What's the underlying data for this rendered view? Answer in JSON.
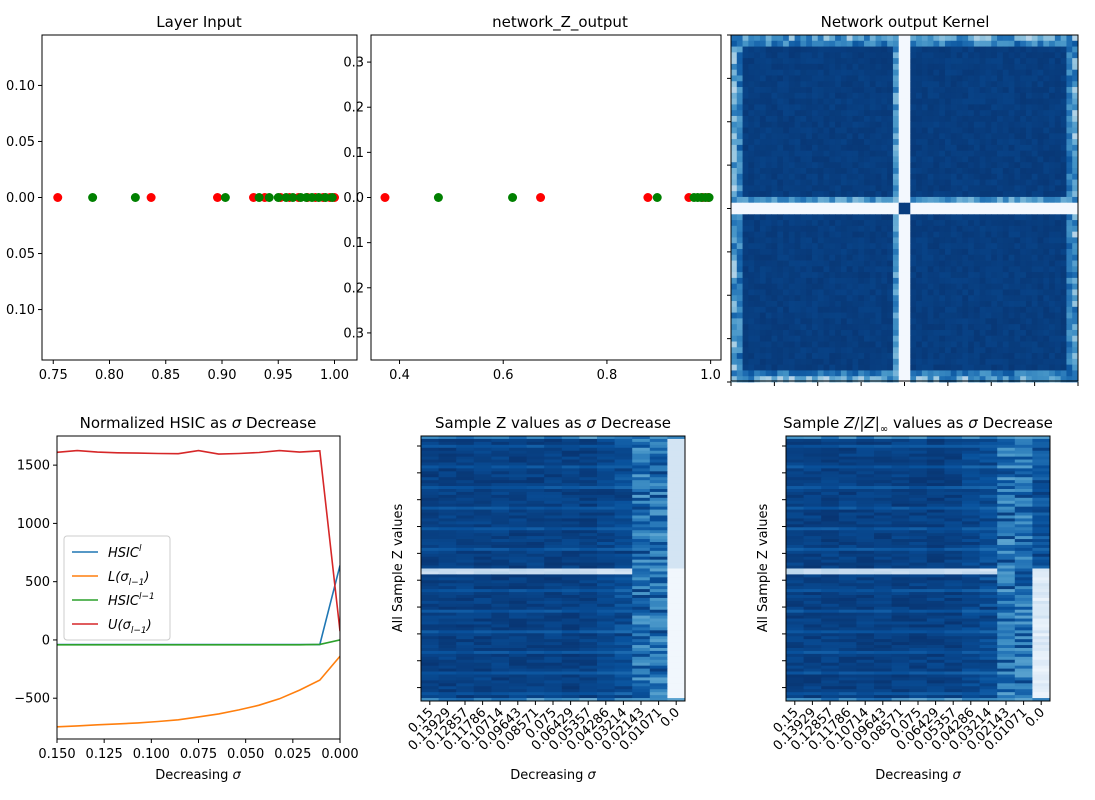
{
  "chart_data": [
    {
      "type": "scatter",
      "title": "Layer Input",
      "xlabel": "",
      "ylabel": "",
      "xlim": [
        0.74,
        1.02
      ],
      "ylim": [
        -0.145,
        0.145
      ],
      "xticks": [
        "0.75",
        "0.80",
        "0.85",
        "0.90",
        "0.95",
        "1.00"
      ],
      "xtick_values": [
        0.75,
        0.8,
        0.85,
        0.9,
        0.95,
        1.0
      ],
      "yticks": [
        "0.10",
        "0.05",
        "0.00",
        "0.05",
        "0.10"
      ],
      "ytick_values": [
        0.1,
        0.05,
        0.0,
        -0.05,
        -0.1
      ],
      "series": [
        {
          "color": "#ff0000",
          "x": [
            0.754,
            0.837,
            0.896,
            0.928,
            0.938,
            0.952,
            0.96,
            0.968,
            0.976,
            0.983,
            0.99,
            0.996,
            1.0
          ],
          "y": [
            0,
            0,
            0,
            0,
            0,
            0,
            0,
            0,
            0,
            0,
            0,
            0,
            0
          ]
        },
        {
          "color": "#008000",
          "x": [
            0.785,
            0.823,
            0.903,
            0.933,
            0.942,
            0.95,
            0.957,
            0.963,
            0.97,
            0.975,
            0.98,
            0.986,
            0.992,
            0.998
          ],
          "y": [
            0,
            0,
            0,
            0,
            0,
            0,
            0,
            0,
            0,
            0,
            0,
            0,
            0,
            0
          ]
        }
      ]
    },
    {
      "type": "scatter",
      "title": "network_Z_output",
      "xlabel": "",
      "ylabel": "",
      "xlim": [
        0.345,
        1.02
      ],
      "ylim": [
        -0.36,
        0.36
      ],
      "xticks": [
        "0.4",
        "0.6",
        "0.8",
        "1.0"
      ],
      "xtick_values": [
        0.4,
        0.6,
        0.8,
        1.0
      ],
      "yticks": [
        "0.3",
        "0.2",
        "0.1",
        "0.0",
        "0.1",
        "0.2",
        "0.3"
      ],
      "ytick_values": [
        0.3,
        0.2,
        0.1,
        0.0,
        -0.1,
        -0.2,
        -0.3
      ],
      "series": [
        {
          "color": "#ff0000",
          "x": [
            0.372,
            0.672,
            0.879,
            0.958,
            0.985,
            0.995
          ],
          "y": [
            0,
            0,
            0,
            0,
            0,
            0
          ]
        },
        {
          "color": "#008000",
          "x": [
            0.475,
            0.618,
            0.897,
            0.968,
            0.975,
            0.982,
            0.99,
            0.997
          ],
          "y": [
            0,
            0,
            0,
            0,
            0,
            0,
            0,
            0
          ]
        }
      ]
    },
    {
      "type": "heatmap",
      "title": "Network output Kernel",
      "colormap": "Blues"
    },
    {
      "type": "line",
      "title": "Normalized HSIC as σ Decrease",
      "xlabel": "Decreasing σ",
      "ylabel": "",
      "xlim": [
        0.15,
        0.0
      ],
      "ylim": [
        -850,
        1750
      ],
      "xticks": [
        "0.150",
        "0.125",
        "0.100",
        "0.075",
        "0.050",
        "0.025",
        "0.000"
      ],
      "xtick_values": [
        0.15,
        0.125,
        0.1,
        0.075,
        0.05,
        0.025,
        0.0
      ],
      "yticks": [
        "1500",
        "1000",
        "500",
        "0",
        "−500"
      ],
      "ytick_values": [
        1500,
        1000,
        500,
        0,
        -500
      ],
      "legend_position": "center-left",
      "x": [
        0.15,
        0.1393,
        0.1286,
        0.1179,
        0.1071,
        0.0964,
        0.0857,
        0.075,
        0.0643,
        0.0536,
        0.0429,
        0.0321,
        0.0214,
        0.0107,
        0.0
      ],
      "series": [
        {
          "name": "HSIC",
          "sup": "l",
          "sub": "",
          "color": "#1f77b4",
          "values": [
            -40,
            -40,
            -40,
            -40,
            -40,
            -40,
            -40,
            -40,
            -40,
            -40,
            -40,
            -40,
            -40,
            -40,
            640
          ]
        },
        {
          "name": "L(σ",
          "sup": "",
          "sub": "l−1",
          "suffix": ")",
          "color": "#ff7f0e",
          "values": [
            -745,
            -738,
            -728,
            -720,
            -712,
            -700,
            -685,
            -660,
            -635,
            -600,
            -560,
            -505,
            -430,
            -345,
            -140
          ]
        },
        {
          "name": "HSIC",
          "sup": "l−1",
          "sub": "",
          "color": "#2ca02c",
          "values": [
            -42,
            -42,
            -42,
            -42,
            -42,
            -42,
            -42,
            -42,
            -42,
            -42,
            -42,
            -42,
            -42,
            -38,
            0
          ]
        },
        {
          "name": "U(σ",
          "sup": "",
          "sub": "l−1",
          "suffix": ")",
          "color": "#d62728",
          "values": [
            1610,
            1625,
            1612,
            1606,
            1603,
            1600,
            1598,
            1625,
            1595,
            1600,
            1608,
            1625,
            1612,
            1622,
            75
          ]
        }
      ]
    },
    {
      "type": "heatmap",
      "title": "Sample Z values as σ Decrease",
      "xlabel": "Decreasing σ",
      "ylabel": "All Sample Z values",
      "colormap": "Blues",
      "xticks": [
        "0.15",
        "0.13929",
        "0.12857",
        "0.11786",
        "0.10714",
        "0.09643",
        "0.08571",
        "0.075",
        "0.06429",
        "0.05357",
        "0.04286",
        "0.03214",
        "0.02143",
        "0.01071",
        "0.0"
      ]
    },
    {
      "type": "heatmap",
      "title": "Sample Z/|Z|∞ values as σ Decrease",
      "xlabel": "Decreasing σ",
      "ylabel": "All Sample Z values",
      "colormap": "Blues",
      "xticks": [
        "0.15",
        "0.13929",
        "0.12857",
        "0.11786",
        "0.10714",
        "0.09643",
        "0.08571",
        "0.075",
        "0.06429",
        "0.05357",
        "0.04286",
        "0.03214",
        "0.02143",
        "0.01071",
        "0.0"
      ]
    }
  ]
}
